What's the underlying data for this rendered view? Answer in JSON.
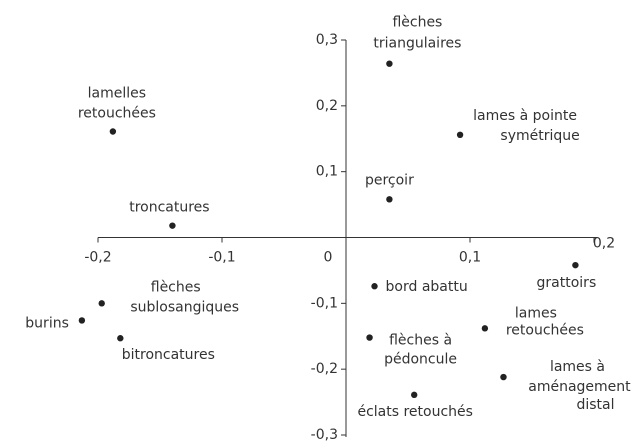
{
  "chart_data": {
    "type": "scatter",
    "x": [
      0.035,
      0.092,
      -0.188,
      0.035,
      -0.14,
      0.185,
      0.023,
      -0.197,
      -0.213,
      -0.182,
      0.112,
      0.019,
      0.127,
      0.055
    ],
    "y": [
      0.264,
      0.156,
      0.161,
      0.058,
      0.018,
      -0.042,
      -0.074,
      -0.1,
      -0.126,
      -0.153,
      -0.138,
      -0.152,
      -0.212,
      -0.239
    ],
    "labels": [
      [
        "flèches",
        "triangulaires"
      ],
      [
        "lames à pointe",
        "symétrique"
      ],
      [
        "lamelles",
        "retouchées"
      ],
      [
        "perçoir"
      ],
      [
        "troncatures"
      ],
      [
        "grattoirs"
      ],
      [
        "bord abattu"
      ],
      [
        "flèches",
        "sublosangiques"
      ],
      [
        "burins"
      ],
      [
        "bitroncatures"
      ],
      [
        "lames",
        "retouchées"
      ],
      [
        "flèches à",
        "pédoncule"
      ],
      [
        "lames  à",
        "aménagement",
        "distal"
      ],
      [
        "éclats retouchés"
      ]
    ],
    "color": "#222222",
    "xlim": [
      -0.2,
      0.2
    ],
    "ylim": [
      -0.3,
      0.3
    ],
    "xticks": [
      {
        "value": -0.2,
        "label": "-0,2"
      },
      {
        "value": -0.1,
        "label": "-0,1"
      },
      0,
      {
        "value": 0.1,
        "label": "0,1"
      },
      {
        "value": 0.2,
        "label": "0,2"
      }
    ],
    "yticks": [
      {
        "value": -0.3,
        "label": "-0,3"
      },
      {
        "value": -0.2,
        "label": "-0,2"
      },
      {
        "value": -0.1,
        "label": "-0,1"
      },
      {
        "value": 0.1,
        "label": "0,1"
      },
      {
        "value": 0.2,
        "label": "0,2"
      },
      {
        "value": 0.3,
        "label": "0,3"
      }
    ]
  }
}
